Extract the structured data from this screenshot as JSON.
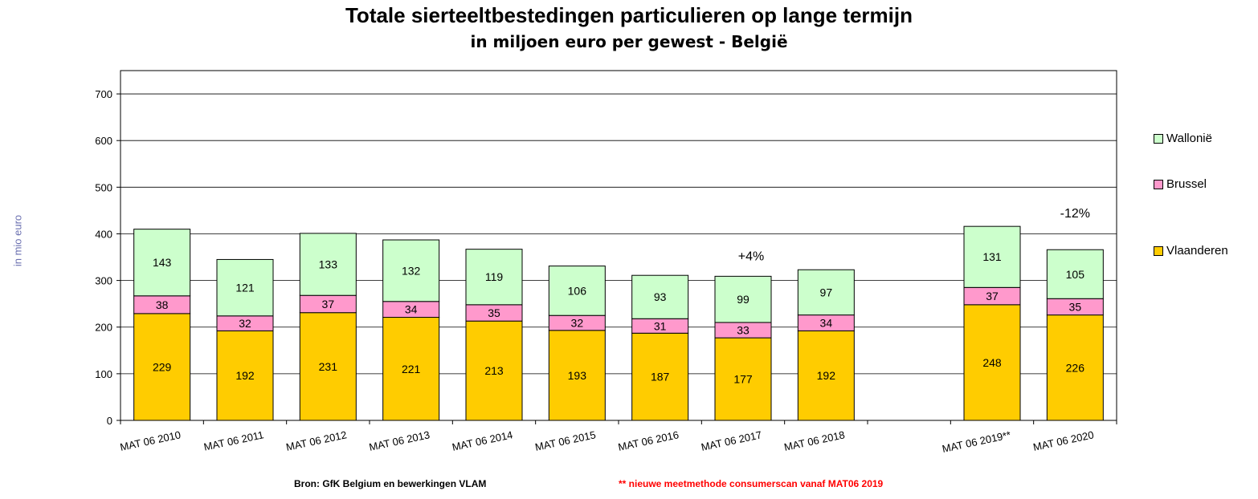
{
  "chart_data": {
    "type": "bar",
    "stacked": true,
    "title": "Totale sierteeltbestedingen  particulieren  op lange termijn",
    "subtitle": "in miljoen euro per gewest - België",
    "ylabel": "in mio euro",
    "ylim": [
      0,
      750
    ],
    "yticks": [
      0,
      100,
      200,
      300,
      400,
      500,
      600,
      700
    ],
    "grid": true,
    "legend_position": "right",
    "categories": [
      "MAT 06 2010",
      "MAT 06 2011",
      "MAT 06 2012",
      "MAT 06 2013",
      "MAT 06 2014",
      "MAT 06 2015",
      "MAT 06 2016",
      "MAT 06 2017",
      "MAT 06 2018",
      "",
      "MAT 06 2019**",
      "MAT 06 2020"
    ],
    "series": [
      {
        "name": "Vlaanderen",
        "color": "#ffcc00",
        "values": [
          229,
          192,
          231,
          221,
          213,
          193,
          187,
          177,
          192,
          null,
          248,
          226
        ]
      },
      {
        "name": "Brussel",
        "color": "#ff99cc",
        "values": [
          38,
          32,
          37,
          34,
          35,
          32,
          31,
          33,
          34,
          null,
          37,
          35
        ]
      },
      {
        "name": "Wallonië",
        "color": "#ccffcc",
        "values": [
          143,
          121,
          133,
          132,
          119,
          106,
          93,
          99,
          97,
          null,
          131,
          105
        ]
      }
    ],
    "legend_order": [
      "Wallonië",
      "Brussel",
      "Vlaanderen"
    ],
    "annotations": [
      {
        "text": "+4%",
        "category_index": 7
      },
      {
        "text": "-12%",
        "category_index": 11
      }
    ]
  },
  "footer": {
    "source": "Bron: GfK Belgium  en bewerkingen VLAM",
    "note": "** nieuwe meetmethode consumerscan  vanaf MAT06 2019"
  }
}
